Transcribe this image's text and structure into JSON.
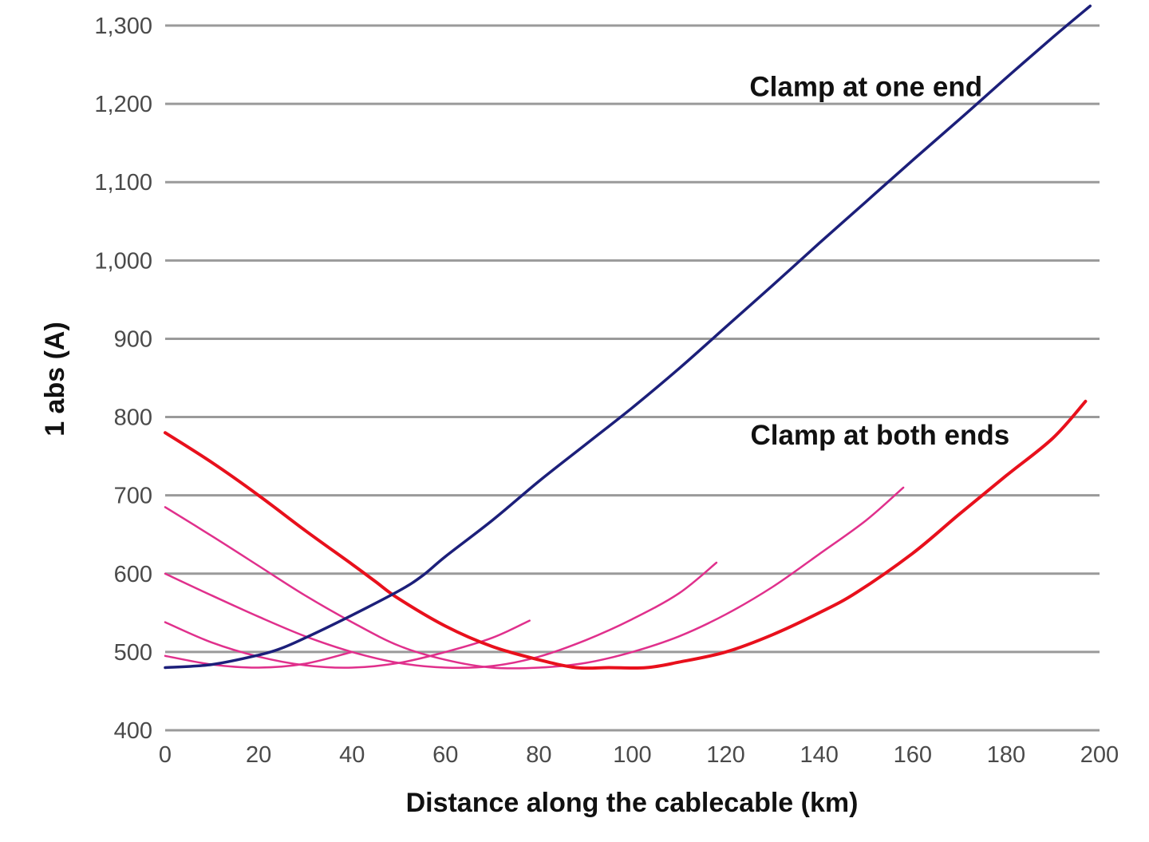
{
  "chart_data": {
    "type": "line",
    "title": "",
    "xlabel": "Distance along the cablecable (km)",
    "ylabel": "1 abs (A)",
    "xlim": [
      0,
      200
    ],
    "ylim": [
      400,
      1300
    ],
    "xticks": [
      0,
      20,
      40,
      60,
      80,
      100,
      120,
      140,
      160,
      180,
      200
    ],
    "yticks": [
      400,
      500,
      600,
      700,
      800,
      900,
      1000,
      1100,
      1200,
      1300
    ],
    "x_tick_labels": [
      "0",
      "20",
      "40",
      "60",
      "80",
      "100",
      "120",
      "140",
      "160",
      "180",
      "200"
    ],
    "y_tick_labels": [
      "400",
      "500",
      "600",
      "700",
      "800",
      "900",
      "1,000",
      "1,100",
      "1,200",
      "1,300"
    ],
    "grid": "horizontal",
    "legend": "none",
    "annotations": [
      {
        "text": "Clamp at one end",
        "x": 150,
        "y": 1210
      },
      {
        "text": "Clamp at both ends",
        "x": 153,
        "y": 765
      }
    ],
    "series": [
      {
        "color": "#1c1f7a",
        "width": 3.5,
        "points": [
          [
            0,
            480
          ],
          [
            10,
            484
          ],
          [
            20,
            496
          ],
          [
            25,
            505
          ],
          [
            30,
            518
          ],
          [
            40,
            547
          ],
          [
            50,
            578
          ],
          [
            55,
            597
          ],
          [
            60,
            622
          ],
          [
            70,
            668
          ],
          [
            80,
            718
          ],
          [
            90,
            765
          ],
          [
            100,
            812
          ],
          [
            110,
            862
          ],
          [
            120,
            915
          ],
          [
            130,
            968
          ],
          [
            140,
            1022
          ],
          [
            150,
            1075
          ],
          [
            160,
            1128
          ],
          [
            170,
            1180
          ],
          [
            180,
            1233
          ],
          [
            190,
            1285
          ],
          [
            198,
            1325
          ]
        ]
      },
      {
        "color": "#e8101c",
        "width": 4,
        "points": [
          [
            0,
            780
          ],
          [
            10,
            742
          ],
          [
            20,
            700
          ],
          [
            30,
            655
          ],
          [
            40,
            612
          ],
          [
            45,
            590
          ],
          [
            50,
            568
          ],
          [
            60,
            533
          ],
          [
            70,
            507
          ],
          [
            80,
            490
          ],
          [
            88,
            480
          ],
          [
            95,
            480
          ],
          [
            103,
            480
          ],
          [
            110,
            487
          ],
          [
            120,
            500
          ],
          [
            130,
            522
          ],
          [
            140,
            550
          ],
          [
            148,
            576
          ],
          [
            160,
            626
          ],
          [
            170,
            676
          ],
          [
            180,
            725
          ],
          [
            190,
            773
          ],
          [
            197,
            820
          ]
        ]
      },
      {
        "color": "#e0308c",
        "width": 2.5,
        "points": [
          [
            0,
            685
          ],
          [
            10,
            648
          ],
          [
            20,
            610
          ],
          [
            30,
            572
          ],
          [
            40,
            538
          ],
          [
            50,
            508
          ],
          [
            60,
            490
          ],
          [
            70,
            480
          ],
          [
            80,
            480
          ],
          [
            90,
            486
          ],
          [
            100,
            500
          ],
          [
            110,
            520
          ],
          [
            120,
            548
          ],
          [
            130,
            583
          ],
          [
            140,
            625
          ],
          [
            150,
            668
          ],
          [
            158,
            710
          ]
        ]
      },
      {
        "color": "#e0308c",
        "width": 2.5,
        "points": [
          [
            0,
            600
          ],
          [
            10,
            572
          ],
          [
            20,
            545
          ],
          [
            30,
            520
          ],
          [
            40,
            500
          ],
          [
            50,
            486
          ],
          [
            60,
            480
          ],
          [
            70,
            482
          ],
          [
            80,
            494
          ],
          [
            90,
            515
          ],
          [
            100,
            542
          ],
          [
            110,
            575
          ],
          [
            118,
            614
          ]
        ]
      },
      {
        "color": "#e0308c",
        "width": 2.5,
        "points": [
          [
            0,
            538
          ],
          [
            10,
            512
          ],
          [
            20,
            494
          ],
          [
            30,
            483
          ],
          [
            40,
            480
          ],
          [
            50,
            486
          ],
          [
            60,
            500
          ],
          [
            70,
            518
          ],
          [
            78,
            540
          ]
        ]
      },
      {
        "color": "#e0308c",
        "width": 2.5,
        "points": [
          [
            0,
            495
          ],
          [
            10,
            484
          ],
          [
            20,
            480
          ],
          [
            30,
            485
          ],
          [
            40,
            500
          ]
        ]
      }
    ]
  }
}
